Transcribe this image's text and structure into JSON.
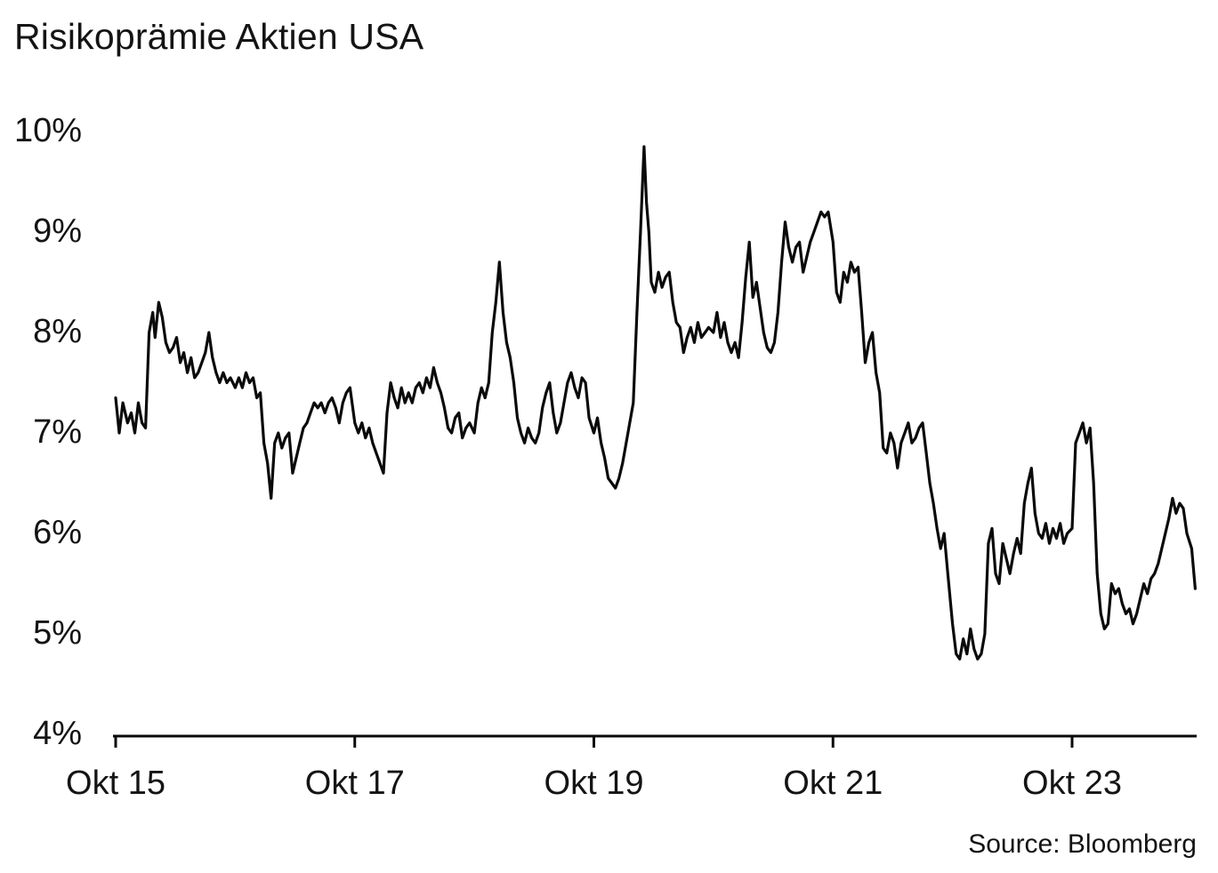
{
  "page": {
    "title": "Risikoprämie Aktien USA",
    "source": "Source: Bloomberg"
  },
  "chart_data": {
    "type": "line",
    "title": "Risikoprämie Aktien USA",
    "xlabel": "",
    "ylabel": "",
    "x_axis_unit": "years since Okt 2015",
    "xlim": [
      0,
      9.04
    ],
    "ylim": [
      4,
      10
    ],
    "x_ticks": [
      0,
      2,
      4,
      6,
      8
    ],
    "x_tick_labels": [
      "Okt 15",
      "Okt 17",
      "Okt 19",
      "Okt 21",
      "Okt 23"
    ],
    "y_ticks": [
      4,
      5,
      6,
      7,
      8,
      9,
      10
    ],
    "y_tick_labels": [
      "4%",
      "5%",
      "6%",
      "7%",
      "8%",
      "9%",
      "10%"
    ],
    "grid": false,
    "legend": false,
    "line_color": "#0a0a0a",
    "line_width": 3.2,
    "axis_color": "#0a0a0a",
    "source": "Source: Bloomberg",
    "series": [
      {
        "name": "Risikoprämie Aktien USA",
        "points": [
          [
            0,
            7.35
          ],
          [
            0.03,
            7.0
          ],
          [
            0.06,
            7.3
          ],
          [
            0.1,
            7.1
          ],
          [
            0.13,
            7.2
          ],
          [
            0.16,
            7.0
          ],
          [
            0.19,
            7.3
          ],
          [
            0.22,
            7.1
          ],
          [
            0.25,
            7.05
          ],
          [
            0.28,
            8.0
          ],
          [
            0.31,
            8.2
          ],
          [
            0.33,
            7.95
          ],
          [
            0.36,
            8.3
          ],
          [
            0.39,
            8.15
          ],
          [
            0.42,
            7.9
          ],
          [
            0.45,
            7.8
          ],
          [
            0.48,
            7.85
          ],
          [
            0.51,
            7.95
          ],
          [
            0.54,
            7.7
          ],
          [
            0.57,
            7.8
          ],
          [
            0.6,
            7.6
          ],
          [
            0.63,
            7.75
          ],
          [
            0.66,
            7.55
          ],
          [
            0.69,
            7.6
          ],
          [
            0.72,
            7.7
          ],
          [
            0.75,
            7.8
          ],
          [
            0.78,
            8.0
          ],
          [
            0.81,
            7.75
          ],
          [
            0.84,
            7.6
          ],
          [
            0.87,
            7.5
          ],
          [
            0.9,
            7.6
          ],
          [
            0.93,
            7.5
          ],
          [
            0.96,
            7.55
          ],
          [
            1.0,
            7.45
          ],
          [
            1.03,
            7.55
          ],
          [
            1.06,
            7.45
          ],
          [
            1.09,
            7.6
          ],
          [
            1.12,
            7.5
          ],
          [
            1.15,
            7.55
          ],
          [
            1.18,
            7.35
          ],
          [
            1.21,
            7.4
          ],
          [
            1.24,
            6.9
          ],
          [
            1.27,
            6.7
          ],
          [
            1.3,
            6.35
          ],
          [
            1.33,
            6.9
          ],
          [
            1.36,
            7.0
          ],
          [
            1.39,
            6.85
          ],
          [
            1.42,
            6.95
          ],
          [
            1.45,
            7.0
          ],
          [
            1.48,
            6.6
          ],
          [
            1.51,
            6.75
          ],
          [
            1.54,
            6.9
          ],
          [
            1.57,
            7.05
          ],
          [
            1.6,
            7.1
          ],
          [
            1.63,
            7.2
          ],
          [
            1.66,
            7.3
          ],
          [
            1.69,
            7.25
          ],
          [
            1.72,
            7.3
          ],
          [
            1.75,
            7.2
          ],
          [
            1.78,
            7.3
          ],
          [
            1.81,
            7.35
          ],
          [
            1.84,
            7.25
          ],
          [
            1.87,
            7.1
          ],
          [
            1.9,
            7.3
          ],
          [
            1.93,
            7.4
          ],
          [
            1.96,
            7.45
          ],
          [
            2.0,
            7.1
          ],
          [
            2.03,
            7.0
          ],
          [
            2.06,
            7.1
          ],
          [
            2.09,
            6.95
          ],
          [
            2.12,
            7.05
          ],
          [
            2.15,
            6.9
          ],
          [
            2.18,
            6.8
          ],
          [
            2.21,
            6.7
          ],
          [
            2.24,
            6.6
          ],
          [
            2.27,
            7.2
          ],
          [
            2.3,
            7.5
          ],
          [
            2.33,
            7.35
          ],
          [
            2.36,
            7.25
          ],
          [
            2.39,
            7.45
          ],
          [
            2.42,
            7.3
          ],
          [
            2.45,
            7.4
          ],
          [
            2.48,
            7.3
          ],
          [
            2.51,
            7.45
          ],
          [
            2.54,
            7.5
          ],
          [
            2.57,
            7.4
          ],
          [
            2.6,
            7.55
          ],
          [
            2.63,
            7.45
          ],
          [
            2.66,
            7.65
          ],
          [
            2.69,
            7.5
          ],
          [
            2.72,
            7.4
          ],
          [
            2.75,
            7.25
          ],
          [
            2.78,
            7.05
          ],
          [
            2.81,
            7.0
          ],
          [
            2.84,
            7.15
          ],
          [
            2.87,
            7.2
          ],
          [
            2.9,
            6.95
          ],
          [
            2.93,
            7.05
          ],
          [
            2.96,
            7.1
          ],
          [
            3.0,
            7.0
          ],
          [
            3.03,
            7.3
          ],
          [
            3.06,
            7.45
          ],
          [
            3.09,
            7.35
          ],
          [
            3.12,
            7.5
          ],
          [
            3.15,
            8.0
          ],
          [
            3.18,
            8.3
          ],
          [
            3.21,
            8.7
          ],
          [
            3.24,
            8.2
          ],
          [
            3.27,
            7.9
          ],
          [
            3.3,
            7.75
          ],
          [
            3.33,
            7.5
          ],
          [
            3.36,
            7.15
          ],
          [
            3.39,
            7.0
          ],
          [
            3.42,
            6.9
          ],
          [
            3.45,
            7.05
          ],
          [
            3.48,
            6.95
          ],
          [
            3.51,
            6.9
          ],
          [
            3.54,
            7.0
          ],
          [
            3.57,
            7.25
          ],
          [
            3.6,
            7.4
          ],
          [
            3.63,
            7.5
          ],
          [
            3.66,
            7.2
          ],
          [
            3.69,
            7.0
          ],
          [
            3.72,
            7.1
          ],
          [
            3.75,
            7.3
          ],
          [
            3.78,
            7.5
          ],
          [
            3.81,
            7.6
          ],
          [
            3.84,
            7.45
          ],
          [
            3.87,
            7.35
          ],
          [
            3.9,
            7.55
          ],
          [
            3.93,
            7.5
          ],
          [
            3.96,
            7.15
          ],
          [
            4.0,
            7.0
          ],
          [
            4.03,
            7.15
          ],
          [
            4.06,
            6.9
          ],
          [
            4.09,
            6.75
          ],
          [
            4.12,
            6.55
          ],
          [
            4.15,
            6.5
          ],
          [
            4.18,
            6.45
          ],
          [
            4.21,
            6.55
          ],
          [
            4.24,
            6.7
          ],
          [
            4.27,
            6.9
          ],
          [
            4.3,
            7.1
          ],
          [
            4.33,
            7.3
          ],
          [
            4.36,
            8.2
          ],
          [
            4.39,
            9.0
          ],
          [
            4.42,
            9.85
          ],
          [
            4.44,
            9.3
          ],
          [
            4.46,
            9.0
          ],
          [
            4.48,
            8.5
          ],
          [
            4.51,
            8.4
          ],
          [
            4.54,
            8.6
          ],
          [
            4.57,
            8.45
          ],
          [
            4.6,
            8.55
          ],
          [
            4.63,
            8.6
          ],
          [
            4.66,
            8.3
          ],
          [
            4.69,
            8.1
          ],
          [
            4.72,
            8.05
          ],
          [
            4.75,
            7.8
          ],
          [
            4.78,
            7.95
          ],
          [
            4.81,
            8.05
          ],
          [
            4.84,
            7.9
          ],
          [
            4.87,
            8.1
          ],
          [
            4.9,
            7.95
          ],
          [
            4.93,
            8.0
          ],
          [
            4.96,
            8.05
          ],
          [
            5.0,
            8.0
          ],
          [
            5.03,
            8.2
          ],
          [
            5.06,
            7.95
          ],
          [
            5.09,
            8.1
          ],
          [
            5.12,
            7.9
          ],
          [
            5.15,
            7.8
          ],
          [
            5.18,
            7.9
          ],
          [
            5.21,
            7.75
          ],
          [
            5.24,
            8.1
          ],
          [
            5.27,
            8.55
          ],
          [
            5.3,
            8.9
          ],
          [
            5.33,
            8.35
          ],
          [
            5.36,
            8.5
          ],
          [
            5.39,
            8.25
          ],
          [
            5.42,
            8.0
          ],
          [
            5.45,
            7.85
          ],
          [
            5.48,
            7.8
          ],
          [
            5.51,
            7.9
          ],
          [
            5.54,
            8.2
          ],
          [
            5.57,
            8.7
          ],
          [
            5.6,
            9.1
          ],
          [
            5.63,
            8.85
          ],
          [
            5.66,
            8.7
          ],
          [
            5.69,
            8.85
          ],
          [
            5.72,
            8.9
          ],
          [
            5.75,
            8.6
          ],
          [
            5.78,
            8.75
          ],
          [
            5.81,
            8.9
          ],
          [
            5.84,
            9.0
          ],
          [
            5.87,
            9.1
          ],
          [
            5.9,
            9.2
          ],
          [
            5.93,
            9.15
          ],
          [
            5.96,
            9.2
          ],
          [
            6.0,
            8.9
          ],
          [
            6.03,
            8.4
          ],
          [
            6.06,
            8.3
          ],
          [
            6.09,
            8.6
          ],
          [
            6.12,
            8.5
          ],
          [
            6.15,
            8.7
          ],
          [
            6.18,
            8.6
          ],
          [
            6.21,
            8.65
          ],
          [
            6.24,
            8.2
          ],
          [
            6.27,
            7.7
          ],
          [
            6.3,
            7.9
          ],
          [
            6.33,
            8.0
          ],
          [
            6.36,
            7.6
          ],
          [
            6.39,
            7.4
          ],
          [
            6.42,
            6.85
          ],
          [
            6.45,
            6.8
          ],
          [
            6.48,
            7.0
          ],
          [
            6.51,
            6.9
          ],
          [
            6.54,
            6.65
          ],
          [
            6.57,
            6.9
          ],
          [
            6.6,
            7.0
          ],
          [
            6.63,
            7.1
          ],
          [
            6.66,
            6.9
          ],
          [
            6.69,
            6.95
          ],
          [
            6.72,
            7.05
          ],
          [
            6.75,
            7.1
          ],
          [
            6.78,
            6.8
          ],
          [
            6.81,
            6.5
          ],
          [
            6.84,
            6.3
          ],
          [
            6.87,
            6.05
          ],
          [
            6.9,
            5.85
          ],
          [
            6.93,
            6.0
          ],
          [
            6.96,
            5.6
          ],
          [
            7.0,
            5.1
          ],
          [
            7.03,
            4.8
          ],
          [
            7.06,
            4.75
          ],
          [
            7.09,
            4.95
          ],
          [
            7.12,
            4.8
          ],
          [
            7.15,
            5.05
          ],
          [
            7.18,
            4.85
          ],
          [
            7.21,
            4.75
          ],
          [
            7.24,
            4.8
          ],
          [
            7.27,
            5.0
          ],
          [
            7.3,
            5.9
          ],
          [
            7.33,
            6.05
          ],
          [
            7.36,
            5.6
          ],
          [
            7.39,
            5.5
          ],
          [
            7.42,
            5.9
          ],
          [
            7.45,
            5.75
          ],
          [
            7.48,
            5.6
          ],
          [
            7.51,
            5.8
          ],
          [
            7.54,
            5.95
          ],
          [
            7.57,
            5.8
          ],
          [
            7.6,
            6.3
          ],
          [
            7.63,
            6.5
          ],
          [
            7.66,
            6.65
          ],
          [
            7.69,
            6.2
          ],
          [
            7.72,
            6.0
          ],
          [
            7.75,
            5.95
          ],
          [
            7.78,
            6.1
          ],
          [
            7.81,
            5.9
          ],
          [
            7.84,
            6.05
          ],
          [
            7.87,
            5.95
          ],
          [
            7.9,
            6.1
          ],
          [
            7.93,
            5.9
          ],
          [
            7.96,
            6.0
          ],
          [
            8.0,
            6.05
          ],
          [
            8.03,
            6.9
          ],
          [
            8.06,
            7.0
          ],
          [
            8.09,
            7.1
          ],
          [
            8.12,
            6.9
          ],
          [
            8.15,
            7.05
          ],
          [
            8.18,
            6.5
          ],
          [
            8.21,
            5.6
          ],
          [
            8.24,
            5.2
          ],
          [
            8.27,
            5.05
          ],
          [
            8.3,
            5.1
          ],
          [
            8.33,
            5.5
          ],
          [
            8.36,
            5.4
          ],
          [
            8.39,
            5.45
          ],
          [
            8.42,
            5.3
          ],
          [
            8.45,
            5.2
          ],
          [
            8.48,
            5.25
          ],
          [
            8.51,
            5.1
          ],
          [
            8.54,
            5.2
          ],
          [
            8.57,
            5.35
          ],
          [
            8.6,
            5.5
          ],
          [
            8.63,
            5.4
          ],
          [
            8.66,
            5.55
          ],
          [
            8.69,
            5.6
          ],
          [
            8.72,
            5.7
          ],
          [
            8.75,
            5.85
          ],
          [
            8.78,
            6.0
          ],
          [
            8.81,
            6.15
          ],
          [
            8.84,
            6.35
          ],
          [
            8.87,
            6.2
          ],
          [
            8.9,
            6.3
          ],
          [
            8.93,
            6.25
          ],
          [
            8.96,
            6.0
          ],
          [
            9.0,
            5.85
          ],
          [
            9.03,
            5.45
          ]
        ]
      }
    ]
  }
}
